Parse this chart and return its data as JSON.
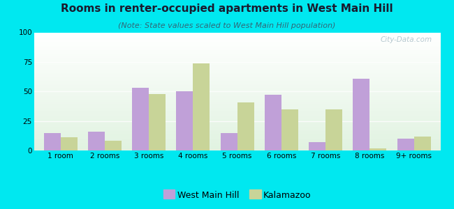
{
  "title": "Rooms in renter-occupied apartments in West Main Hill",
  "subtitle": "(Note: State values scaled to West Main Hill population)",
  "categories": [
    "1 room",
    "2 rooms",
    "3 rooms",
    "4 rooms",
    "5 rooms",
    "6 rooms",
    "7 rooms",
    "8 rooms",
    "9+ rooms"
  ],
  "west_main_hill": [
    15,
    16,
    53,
    50,
    15,
    47,
    7,
    61,
    10
  ],
  "kalamazoo": [
    11,
    8,
    48,
    74,
    41,
    35,
    35,
    2,
    12
  ],
  "bar_color_wmh": "#c0a0d8",
  "bar_color_kzoo": "#c8d498",
  "background_outer": "#00e8f0",
  "ylim": [
    0,
    100
  ],
  "yticks": [
    0,
    25,
    50,
    75,
    100
  ],
  "bar_width": 0.38,
  "title_fontsize": 11,
  "subtitle_fontsize": 8,
  "tick_fontsize": 7.5,
  "legend_fontsize": 9,
  "watermark": "City-Data.com"
}
